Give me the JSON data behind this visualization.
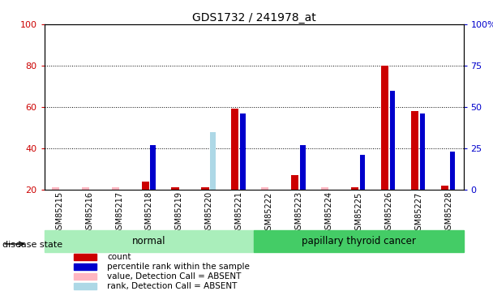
{
  "title": "GDS1732 / 241978_at",
  "samples": [
    "GSM85215",
    "GSM85216",
    "GSM85217",
    "GSM85218",
    "GSM85219",
    "GSM85220",
    "GSM85221",
    "GSM85222",
    "GSM85223",
    "GSM85224",
    "GSM85225",
    "GSM85226",
    "GSM85227",
    "GSM85228"
  ],
  "red_values": [
    21,
    21,
    21,
    24,
    21,
    21,
    59,
    21,
    27,
    21,
    21,
    80,
    58,
    22
  ],
  "blue_values": [
    0,
    0,
    0,
    27,
    0,
    0,
    46,
    0,
    27,
    0,
    21,
    60,
    46,
    23
  ],
  "pink_values": [
    21,
    21,
    21,
    0,
    0,
    35,
    0,
    21,
    0,
    21,
    0,
    0,
    0,
    0
  ],
  "lightblue_values": [
    0,
    0,
    0,
    0,
    0,
    35,
    0,
    0,
    0,
    0,
    0,
    0,
    0,
    0
  ],
  "absent_red": [
    true,
    true,
    true,
    false,
    false,
    false,
    false,
    true,
    false,
    true,
    false,
    false,
    false,
    false
  ],
  "absent_blue": [
    false,
    false,
    false,
    false,
    false,
    true,
    false,
    false,
    false,
    false,
    false,
    false,
    false,
    false
  ],
  "normal_group": [
    0,
    1,
    2,
    3,
    4,
    5,
    6
  ],
  "cancer_group": [
    7,
    8,
    9,
    10,
    11,
    12,
    13
  ],
  "group_labels": [
    "normal",
    "papillary thyroid cancer"
  ],
  "normal_color": "#aaeebb",
  "cancer_color": "#44cc66",
  "ymin": 20,
  "ymax": 100,
  "left_yticks": [
    20,
    40,
    60,
    80,
    100
  ],
  "left_yticklabels": [
    "20",
    "40",
    "60",
    "80",
    "100"
  ],
  "right_yticks_left_scale": [
    20,
    40,
    60,
    80,
    100
  ],
  "right_yticklabels": [
    "0",
    "25",
    "50",
    "75",
    "100%"
  ],
  "red_color": "#cc0000",
  "blue_color": "#0000cc",
  "pink_color": "#ffb6c1",
  "lightblue_color": "#add8e6",
  "disease_label": "disease state",
  "legend_items": [
    {
      "label": "count",
      "color": "#cc0000"
    },
    {
      "label": "percentile rank within the sample",
      "color": "#0000cc"
    },
    {
      "label": "value, Detection Call = ABSENT",
      "color": "#ffb6c1"
    },
    {
      "label": "rank, Detection Call = ABSENT",
      "color": "#add8e6"
    }
  ]
}
